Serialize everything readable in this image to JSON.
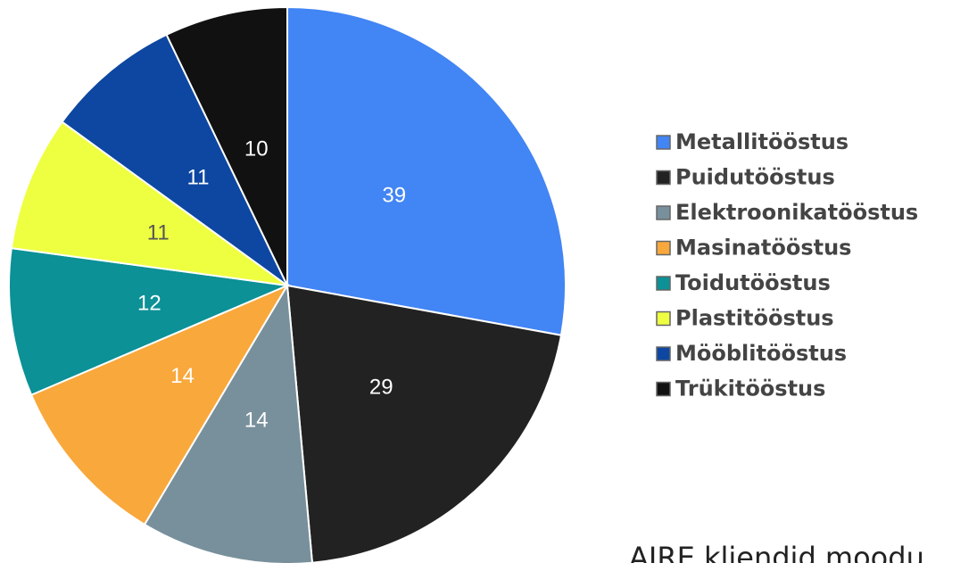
{
  "chart_data": {
    "type": "pie",
    "categories": [
      "Metallitööstus",
      "Puidutööstus",
      "Elektroonikatööstus",
      "Masinatööstus",
      "Toidutööstus",
      "Plastitööstus",
      "Mööblitööstus",
      "Trükitööstus"
    ],
    "values": [
      39,
      29,
      14,
      14,
      12,
      11,
      11,
      10
    ],
    "colors": [
      "#4285f4",
      "#222222",
      "#78909c",
      "#f9a83c",
      "#0b9196",
      "#eeff41",
      "#0d47a1",
      "#111111"
    ],
    "label_colors": [
      "#ffffff",
      "#ffffff",
      "#ffffff",
      "#ffffff",
      "#ffffff",
      "#555555",
      "#ffffff",
      "#ffffff"
    ],
    "legend": "right",
    "caption": "AIRE kliendid moodu"
  }
}
